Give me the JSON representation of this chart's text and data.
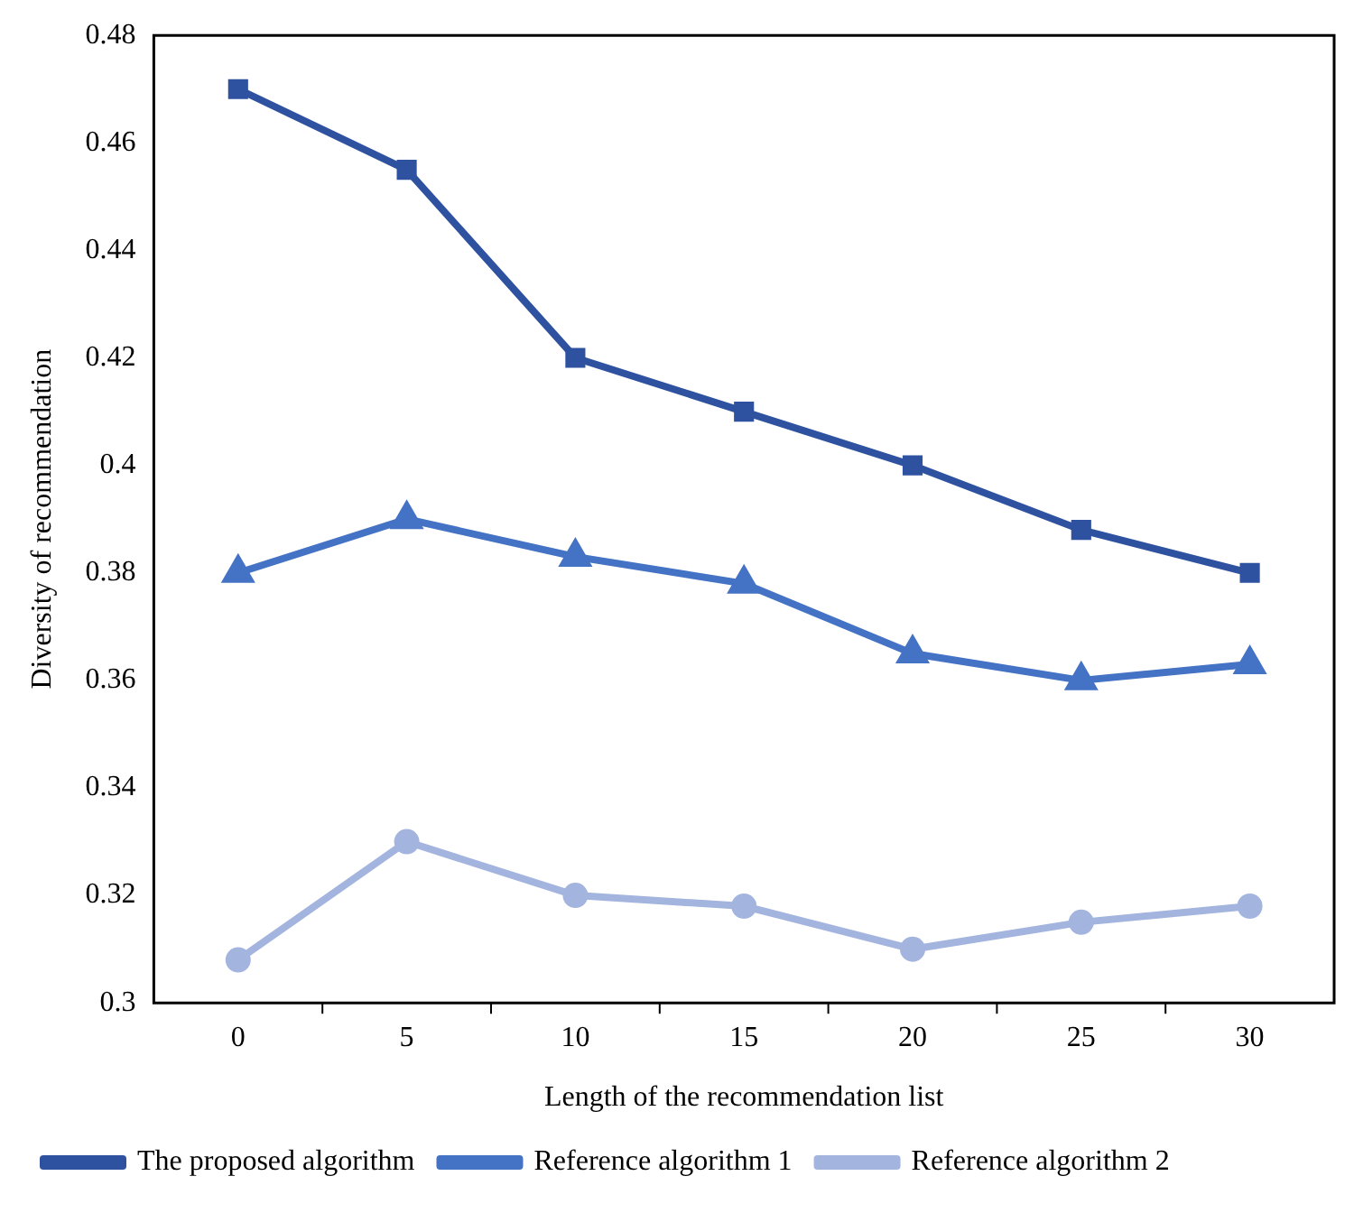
{
  "chart_data": {
    "type": "line",
    "xlabel": "Length of the recommendation list",
    "ylabel": "Diversity of recommendation",
    "categories": [
      "0",
      "5",
      "10",
      "15",
      "20",
      "25",
      "30"
    ],
    "series": [
      {
        "name": "The proposed algorithm",
        "color": "#2f52a0",
        "marker": "square",
        "values": [
          0.47,
          0.455,
          0.42,
          0.41,
          0.4,
          0.388,
          0.38
        ]
      },
      {
        "name": "Reference algorithm 1",
        "color": "#4472c4",
        "marker": "triangle",
        "values": [
          0.38,
          0.39,
          0.383,
          0.378,
          0.365,
          0.36,
          0.363
        ]
      },
      {
        "name": "Reference algorithm 2",
        "color": "#a3b4de",
        "marker": "circle",
        "values": [
          0.308,
          0.33,
          0.32,
          0.318,
          0.31,
          0.315,
          0.318
        ]
      }
    ],
    "ylim": [
      0.3,
      0.48
    ],
    "yticks": [
      0.3,
      0.32,
      0.34,
      0.36,
      0.38,
      0.4,
      0.42,
      0.44,
      0.46,
      0.48
    ],
    "grid": false,
    "legend": "bottom",
    "line_style": "solid"
  }
}
